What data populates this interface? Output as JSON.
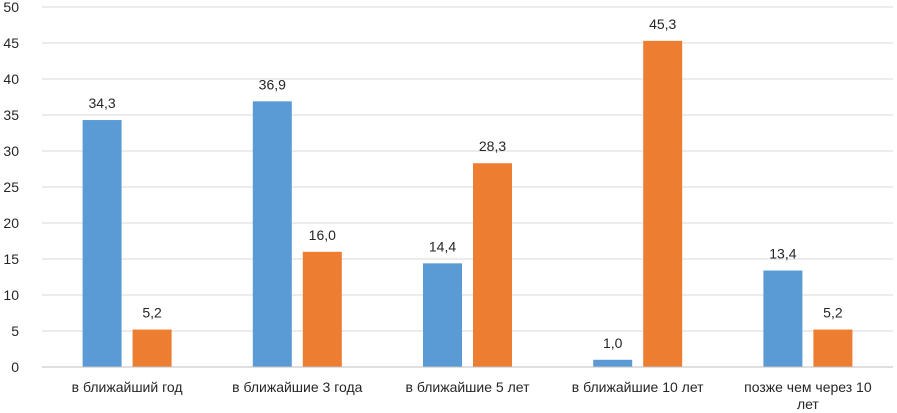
{
  "chart_data": {
    "type": "bar",
    "categories": [
      [
        "в ближайший год"
      ],
      [
        "в ближайшие 3 года"
      ],
      [
        "в ближайшие 5 лет"
      ],
      [
        "в ближайшие 10 лет"
      ],
      [
        "позже чем через 10",
        "лет"
      ]
    ],
    "series": [
      {
        "color": "#5B9BD5",
        "values": [
          34.3,
          36.9,
          14.4,
          1.0,
          13.4
        ],
        "labels": [
          "34,3",
          "36,9",
          "14,4",
          "1,0",
          "13,4"
        ]
      },
      {
        "color": "#ED7D31",
        "values": [
          5.2,
          16.0,
          28.3,
          45.3,
          5.2
        ],
        "labels": [
          "5,2",
          "16,0",
          "28,3",
          "45,3",
          "5,2"
        ]
      }
    ],
    "yticks": [
      "0",
      "5",
      "10",
      "15",
      "20",
      "25",
      "30",
      "35",
      "40",
      "45",
      "50"
    ],
    "ylim": [
      0,
      50
    ],
    "grid": true,
    "legend": "none",
    "gridline_color": "#D9D9D9",
    "axis_color": "#BFBFBF"
  }
}
